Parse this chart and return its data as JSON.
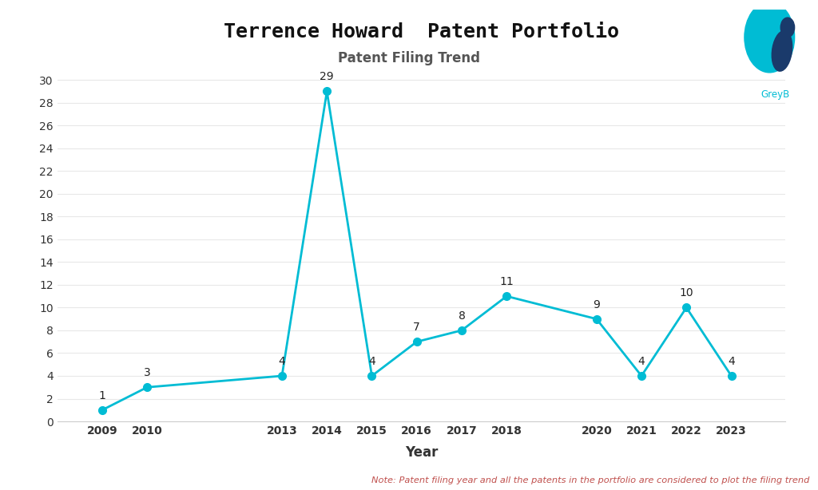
{
  "title": "Terrence Howard  Patent Portfolio",
  "subtitle": "Patent Filing Trend",
  "xlabel": "Year",
  "years": [
    2009,
    2010,
    2013,
    2014,
    2015,
    2016,
    2017,
    2018,
    2020,
    2021,
    2022,
    2023
  ],
  "values": [
    1,
    3,
    4,
    29,
    4,
    7,
    8,
    11,
    9,
    4,
    10,
    4
  ],
  "line_color": "#00BCD4",
  "marker_color": "#00BCD4",
  "bg_color": "#FFFFFF",
  "title_fontsize": 18,
  "subtitle_fontsize": 12,
  "xlabel_fontsize": 12,
  "annotation_fontsize": 10,
  "note_text": "Note: Patent filing year and all the patents in the portfolio are considered to plot the filing trend",
  "note_color": "#C0504D",
  "yticks": [
    0,
    2,
    4,
    6,
    8,
    10,
    12,
    14,
    16,
    18,
    20,
    22,
    24,
    26,
    28,
    30
  ],
  "ylim": [
    0,
    31
  ],
  "xlim": [
    2008.0,
    2024.2
  ],
  "grid_color": "#E8E8E8"
}
